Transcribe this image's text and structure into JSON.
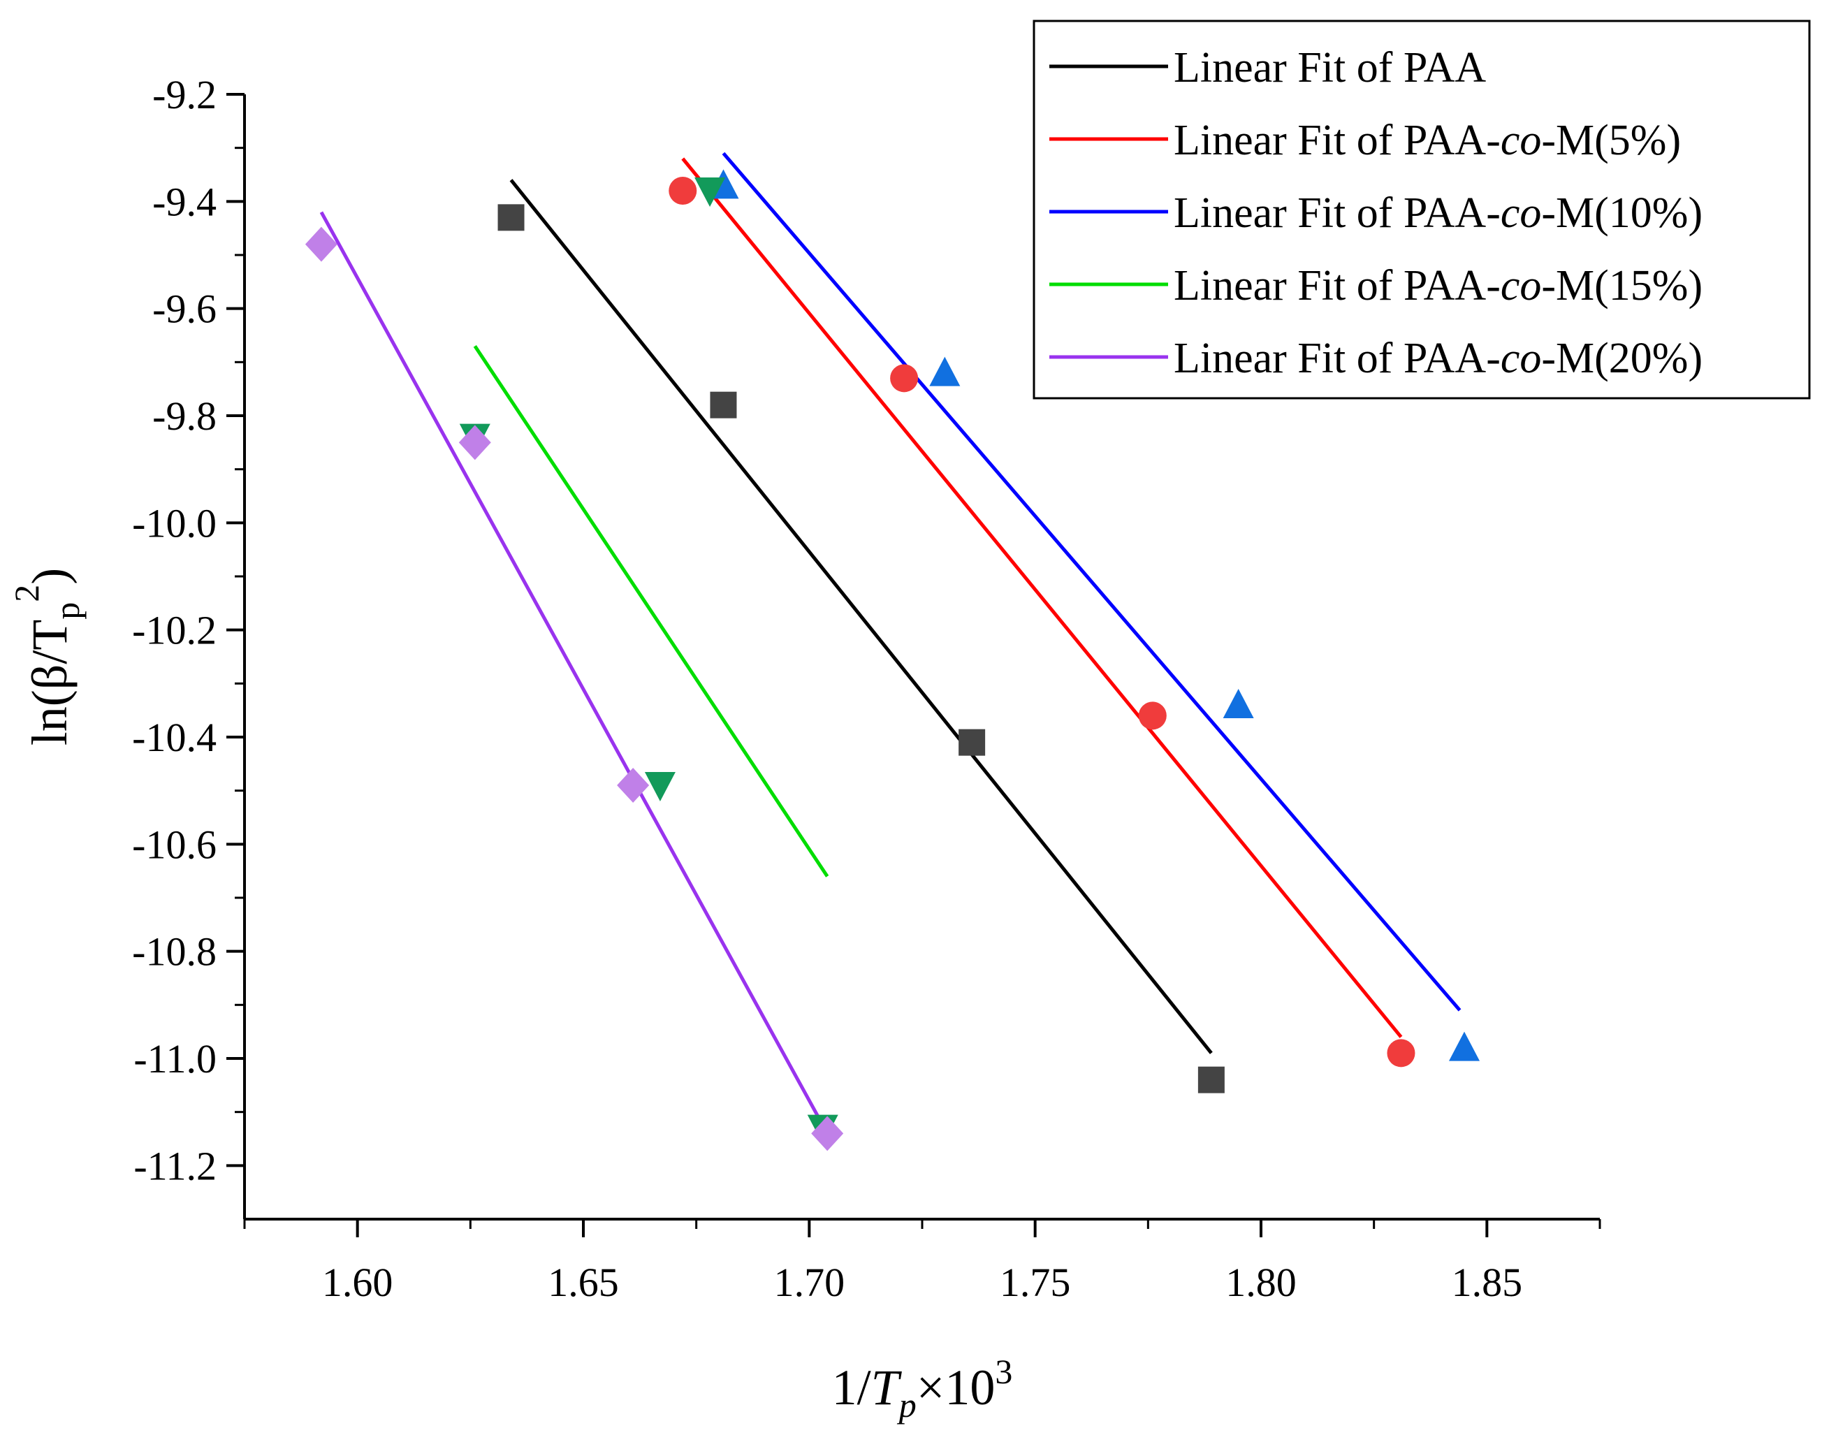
{
  "chart_data": {
    "type": "scatter",
    "title": "",
    "xlabel": {
      "prefix": "1/",
      "italic": "T",
      "sub": "p",
      "times": "×10",
      "sup": "3"
    },
    "ylabel": {
      "prefix": "ln(β/T",
      "sub": "p",
      "sup": "2",
      "suffix": ")"
    },
    "xlim": [
      1.575,
      1.875
    ],
    "ylim": [
      -11.3,
      -9.2
    ],
    "xticks": [
      1.6,
      1.65,
      1.7,
      1.75,
      1.8,
      1.85
    ],
    "xtick_labels": [
      "1.60",
      "1.65",
      "1.70",
      "1.75",
      "1.80",
      "1.85"
    ],
    "yticks": [
      -9.2,
      -9.4,
      -9.6,
      -9.8,
      -10.0,
      -10.2,
      -10.4,
      -10.6,
      -10.8,
      -11.0,
      -11.2
    ],
    "ytick_labels": [
      "-9.2",
      "-9.4",
      "-9.6",
      "-9.8",
      "-10.0",
      "-10.2",
      "-10.4",
      "-10.6",
      "-10.8",
      "-11.0",
      "-11.2"
    ],
    "grid": false,
    "legend_position": "top-right",
    "series": [
      {
        "name": "PAA",
        "legend": "Linear Fit of PAA",
        "legend_parts": [
          "Linear Fit of PAA"
        ],
        "marker": "square",
        "marker_color": "#444444",
        "line_color": "#000000",
        "points": [
          [
            1.634,
            -9.43
          ],
          [
            1.681,
            -9.78
          ],
          [
            1.736,
            -10.41
          ],
          [
            1.789,
            -11.04
          ]
        ],
        "fit": [
          [
            1.634,
            -9.36
          ],
          [
            1.789,
            -10.99
          ]
        ]
      },
      {
        "name": "PAA-co-M(5%)",
        "legend": "Linear Fit of PAA-co-M(5%)",
        "legend_parts": [
          "Linear Fit of PAA-",
          "co",
          "-M(5%)"
        ],
        "marker": "circle",
        "marker_color": "#f03c3c",
        "line_color": "#ff0000",
        "points": [
          [
            1.672,
            -9.38
          ],
          [
            1.721,
            -9.73
          ],
          [
            1.776,
            -10.36
          ],
          [
            1.831,
            -10.99
          ]
        ],
        "fit": [
          [
            1.672,
            -9.32
          ],
          [
            1.831,
            -10.96
          ]
        ]
      },
      {
        "name": "PAA-co-M(10%)",
        "legend": "Linear Fit of PAA-co-M(10%)",
        "legend_parts": [
          "Linear Fit of PAA-",
          "co",
          "-M(10%)"
        ],
        "marker": "triangle-up",
        "marker_color": "#1170e0",
        "line_color": "#0000ff",
        "points": [
          [
            1.681,
            -9.37
          ],
          [
            1.73,
            -9.72
          ],
          [
            1.795,
            -10.34
          ],
          [
            1.845,
            -10.98
          ]
        ],
        "fit": [
          [
            1.681,
            -9.31
          ],
          [
            1.844,
            -10.91
          ]
        ]
      },
      {
        "name": "PAA-co-M(15%)",
        "legend": "Linear Fit of PAA-co-M(15%)",
        "legend_parts": [
          "Linear Fit of PAA-",
          "co",
          "-M(15%)"
        ],
        "marker": "triangle-down",
        "marker_color": "#129a5a",
        "line_color": "#00dd00",
        "points": [
          [
            1.678,
            -9.38
          ],
          [
            1.626,
            -9.84
          ],
          [
            1.667,
            -10.49
          ],
          [
            1.703,
            -11.13
          ]
        ],
        "fit": [
          [
            1.626,
            -9.67
          ],
          [
            1.704,
            -10.66
          ]
        ]
      },
      {
        "name": "PAA-co-M(20%)",
        "legend": "Linear Fit of PAA-co-M(20%)",
        "legend_parts": [
          "Linear Fit of PAA-",
          "co",
          "-M(20%)"
        ],
        "marker": "diamond",
        "marker_color": "#c080e8",
        "line_color": "#9933ee",
        "points": [
          [
            1.592,
            -9.48
          ],
          [
            1.626,
            -9.85
          ],
          [
            1.661,
            -10.49
          ],
          [
            1.704,
            -11.14
          ]
        ],
        "fit": [
          [
            1.592,
            -9.42
          ],
          [
            1.704,
            -11.14
          ]
        ]
      }
    ]
  }
}
